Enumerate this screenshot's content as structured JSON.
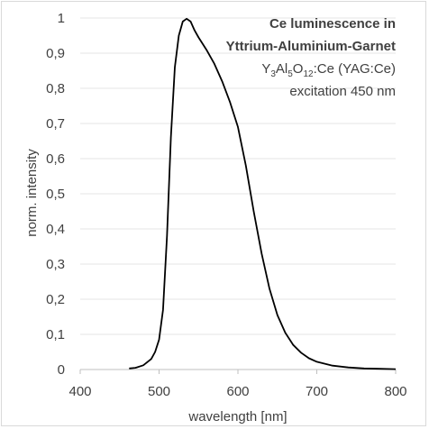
{
  "chart_data": {
    "type": "line",
    "xlabel": "wavelength [nm]",
    "ylabel": "norm. intensity",
    "xlim": [
      400,
      800
    ],
    "ylim": [
      0,
      1
    ],
    "x_ticks": [
      "400",
      "500",
      "600",
      "700",
      "800"
    ],
    "y_ticks": [
      "0",
      "0,1",
      "0,2",
      "0,3",
      "0,4",
      "0,5",
      "0,6",
      "0,7",
      "0,8",
      "0,9",
      "1"
    ],
    "grid": "horizontal",
    "annotation": {
      "title_line1": "Ce luminescence in",
      "title_line2": "Yttrium-Aluminium-Garnet",
      "formula_Y": "Y",
      "formula_3": "3",
      "formula_Al": "Al",
      "formula_5": "5",
      "formula_O": "O",
      "formula_12": "12",
      "formula_rest": ":Ce (YAG:Ce)",
      "excitation": "excitation 450 nm"
    },
    "series": [
      {
        "color": "#000000",
        "x": [
          462,
          470,
          480,
          490,
          495,
          500,
          505,
          510,
          515,
          520,
          525,
          530,
          535,
          540,
          545,
          550,
          560,
          570,
          580,
          590,
          600,
          610,
          620,
          630,
          640,
          650,
          660,
          670,
          680,
          690,
          700,
          720,
          740,
          760,
          780,
          800
        ],
        "y": [
          0.003,
          0.005,
          0.012,
          0.03,
          0.05,
          0.085,
          0.17,
          0.38,
          0.66,
          0.86,
          0.95,
          0.99,
          0.998,
          0.99,
          0.965,
          0.945,
          0.91,
          0.87,
          0.82,
          0.76,
          0.69,
          0.58,
          0.45,
          0.33,
          0.23,
          0.155,
          0.105,
          0.07,
          0.048,
          0.032,
          0.022,
          0.011,
          0.006,
          0.003,
          0.002,
          0.001
        ]
      }
    ]
  }
}
